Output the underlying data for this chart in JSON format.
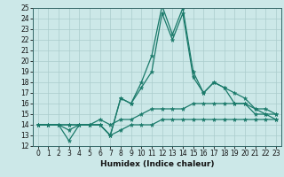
{
  "xlabel": "Humidex (Indice chaleur)",
  "bg_color": "#cce8e8",
  "line_color": "#1a7a6a",
  "grid_color": "#aacccc",
  "x": [
    0,
    1,
    2,
    3,
    4,
    5,
    6,
    7,
    8,
    9,
    10,
    11,
    12,
    13,
    14,
    15,
    16,
    17,
    18,
    19,
    20,
    21,
    22,
    23
  ],
  "series1": [
    14,
    14,
    14,
    13.5,
    14,
    14,
    14,
    13,
    16.5,
    16,
    18,
    20.5,
    25.2,
    22.5,
    25,
    19,
    17,
    18,
    17.5,
    17,
    16.5,
    15.5,
    15,
    15
  ],
  "series2": [
    14,
    14,
    14,
    12.5,
    14,
    14,
    14,
    13,
    16.5,
    16,
    17.5,
    19,
    24.5,
    22,
    24.5,
    18.5,
    17,
    18,
    17.5,
    16,
    16,
    15,
    15,
    14.5
  ],
  "series3": [
    14,
    14,
    14,
    14,
    14,
    14,
    14.5,
    14,
    14.5,
    14.5,
    15,
    15.5,
    15.5,
    15.5,
    15.5,
    16,
    16,
    16,
    16,
    16,
    16,
    15.5,
    15.5,
    15
  ],
  "series4": [
    14,
    14,
    14,
    14,
    14,
    14,
    14,
    13,
    13.5,
    14,
    14,
    14,
    14.5,
    14.5,
    14.5,
    14.5,
    14.5,
    14.5,
    14.5,
    14.5,
    14.5,
    14.5,
    14.5,
    14.5
  ],
  "ylim": [
    12,
    25
  ],
  "xlim": [
    -0.5,
    23.5
  ],
  "yticks": [
    12,
    13,
    14,
    15,
    16,
    17,
    18,
    19,
    20,
    21,
    22,
    23,
    24,
    25
  ],
  "xticks": [
    0,
    1,
    2,
    3,
    4,
    5,
    6,
    7,
    8,
    9,
    10,
    11,
    12,
    13,
    14,
    15,
    16,
    17,
    18,
    19,
    20,
    21,
    22,
    23
  ],
  "tick_fontsize": 5.5,
  "xlabel_fontsize": 6.5,
  "marker_size": 3.5,
  "line_width": 0.9
}
